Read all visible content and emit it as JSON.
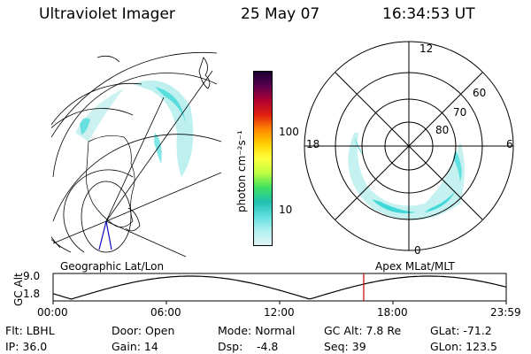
{
  "header": {
    "instrument": "Ultraviolet Imager",
    "date": "25 May 07",
    "time": "16:34:53 UT"
  },
  "colorbar": {
    "unit_label": "photon cm⁻²s⁻¹",
    "ticks": [
      "100",
      "10"
    ],
    "colors": [
      "#1a0030",
      "#5a0050",
      "#b00030",
      "#e02010",
      "#ff8800",
      "#ffd000",
      "#ffff40",
      "#c0ff40",
      "#40e060",
      "#20c0b0",
      "#60e0e0",
      "#b0f0f0",
      "#e0f4f4"
    ]
  },
  "left_panel": {
    "label": "Geographic Lat/Lon"
  },
  "right_panel": {
    "label": "Apex MLat/MLT",
    "mlt_labels": {
      "top": "12",
      "bottom": "0",
      "left": "18",
      "right": "6"
    },
    "mlat_labels": [
      "60",
      "70",
      "80"
    ]
  },
  "altitude_plot": {
    "ylabel": "GC Alt",
    "yticks": [
      "9.0",
      "1.8"
    ],
    "xticks": [
      "00:00",
      "06:00",
      "12:00",
      "18:00",
      "23:59"
    ],
    "marker_color": "#cc0000"
  },
  "status": {
    "flt": "Flt: LBHL",
    "door": "Door: Open",
    "mode": "Mode: Normal",
    "gc_alt": "GC Alt: 7.8 Re",
    "glat": "GLat: -71.2",
    "ip": "IP: 36.0",
    "gain": "Gain: 14",
    "dsp_label": "Dsp:",
    "dsp_value": "-4.8",
    "seq": "Seq: 39",
    "glon": "GLon: 123.5"
  }
}
